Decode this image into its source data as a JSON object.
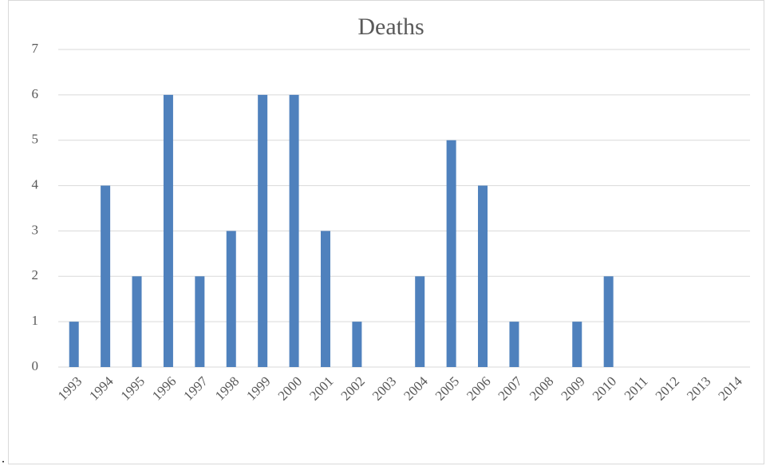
{
  "chart_data": {
    "type": "bar",
    "title": "Deaths",
    "categories": [
      "1993",
      "1994",
      "1995",
      "1996",
      "1997",
      "1998",
      "1999",
      "2000",
      "2001",
      "2002",
      "2003",
      "2004",
      "2005",
      "2006",
      "2007",
      "2008",
      "2009",
      "2010",
      "2011",
      "2012",
      "2013",
      "2014"
    ],
    "values": [
      1,
      4,
      2,
      6,
      2,
      3,
      6,
      6,
      3,
      1,
      0,
      2,
      5,
      4,
      1,
      0,
      1,
      2,
      0,
      0,
      0,
      0
    ],
    "color": "#4f81bd",
    "ylim": [
      0,
      7
    ],
    "yticks": [
      0,
      1,
      2,
      3,
      4,
      5,
      6,
      7
    ],
    "grid": true
  },
  "paragraph_mark": "."
}
